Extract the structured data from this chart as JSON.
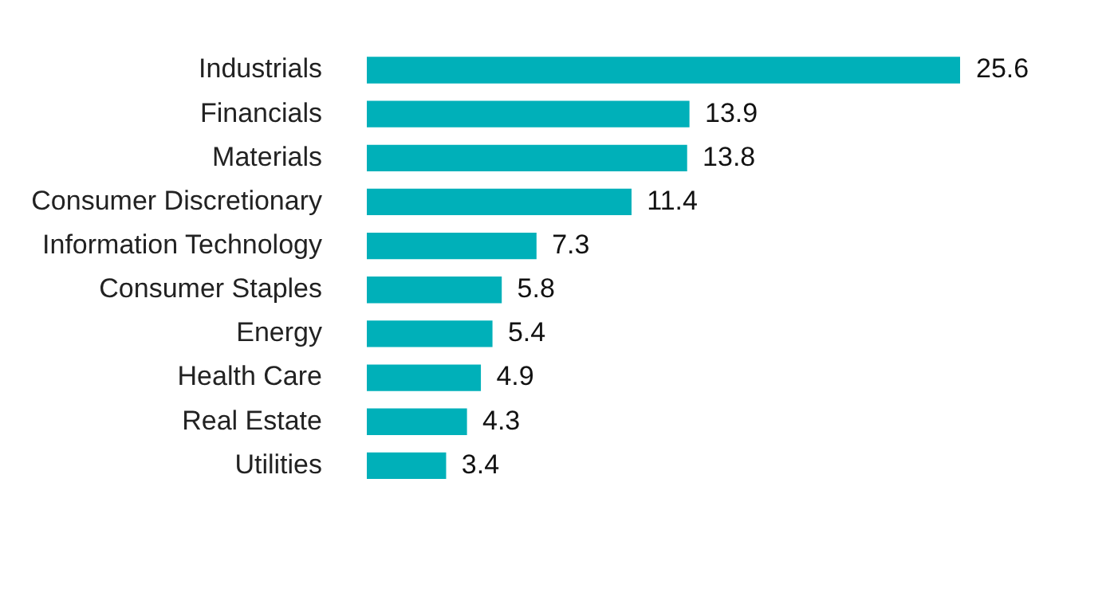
{
  "chart_data": {
    "type": "bar",
    "orientation": "horizontal",
    "categories": [
      "Industrials",
      "Financials",
      "Materials",
      "Consumer Discretionary",
      "Information Technology",
      "Consumer Staples",
      "Energy",
      "Health Care",
      "Real Estate",
      "Utilities"
    ],
    "values": [
      25.6,
      13.9,
      13.8,
      11.4,
      7.3,
      5.8,
      5.4,
      4.9,
      4.3,
      3.4
    ],
    "color": "#00b0b9",
    "data_labels": true
  }
}
